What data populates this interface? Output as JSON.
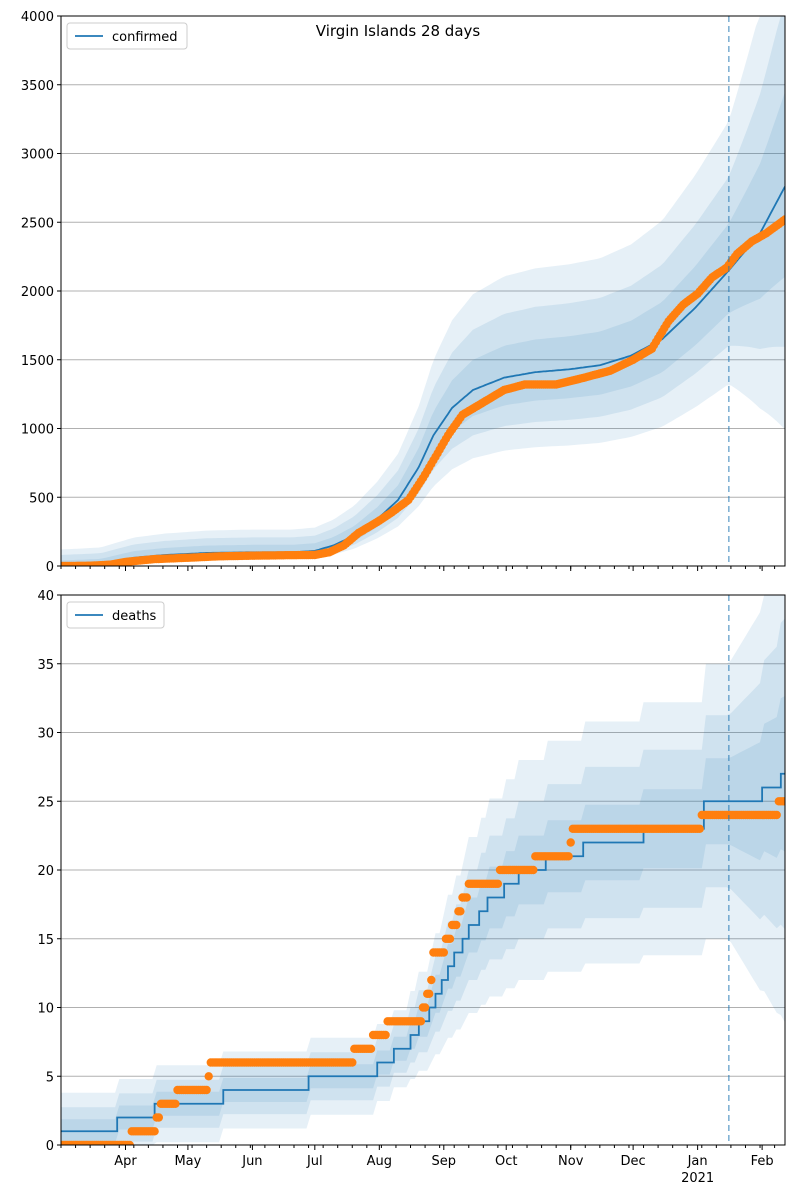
{
  "title": "Virgin Islands 28 days",
  "colors": {
    "line": "#1f77b4",
    "points": "#ff7f0e",
    "band": "#1f77b4",
    "grid": "#b0b0b0",
    "forecast_line": "#1f77b4"
  },
  "x_ticks": [
    {
      "label": "Apr",
      "day": 31
    },
    {
      "label": "May",
      "day": 61
    },
    {
      "label": "Jun",
      "day": 92
    },
    {
      "label": "Jul",
      "day": 122
    },
    {
      "label": "Aug",
      "day": 153
    },
    {
      "label": "Sep",
      "day": 184
    },
    {
      "label": "Oct",
      "day": 214
    },
    {
      "label": "Nov",
      "day": 245
    },
    {
      "label": "Dec",
      "day": 275
    },
    {
      "label": "Jan",
      "day": 306
    },
    {
      "label": "Feb",
      "day": 337
    }
  ],
  "x_year_label": "2021",
  "chart_data": [
    {
      "type": "line",
      "panel": "top",
      "title": "Virgin Islands 28 days",
      "legend": [
        "confirmed"
      ],
      "legend_position": "upper-left",
      "ylim": [
        0,
        4000
      ],
      "yticks": [
        "0",
        "500",
        "1000",
        "1500",
        "2000",
        "2500",
        "3000",
        "3500",
        "4000"
      ],
      "grid": "horizontal",
      "forecast_start": "2021-01-16",
      "series": [
        {
          "name": "confirmed",
          "kind": "model",
          "points": [
            [
              "2020-03-01",
              0
            ],
            [
              "2020-03-20",
              10
            ],
            [
              "2020-04-05",
              60
            ],
            [
              "2020-04-20",
              80
            ],
            [
              "2020-05-10",
              95
            ],
            [
              "2020-06-01",
              100
            ],
            [
              "2020-06-20",
              100
            ],
            [
              "2020-07-01",
              110
            ],
            [
              "2020-07-10",
              150
            ],
            [
              "2020-07-20",
              220
            ],
            [
              "2020-07-31",
              340
            ],
            [
              "2020-08-10",
              480
            ],
            [
              "2020-08-20",
              720
            ],
            [
              "2020-08-27",
              950
            ],
            [
              "2020-09-05",
              1150
            ],
            [
              "2020-09-15",
              1280
            ],
            [
              "2020-09-30",
              1370
            ],
            [
              "2020-10-15",
              1410
            ],
            [
              "2020-10-31",
              1430
            ],
            [
              "2020-11-15",
              1460
            ],
            [
              "2020-11-30",
              1530
            ],
            [
              "2020-12-15",
              1650
            ],
            [
              "2020-12-31",
              1880
            ],
            [
              "2021-01-16",
              2150
            ],
            [
              "2021-01-31",
              2420
            ],
            [
              "2021-02-12",
              2760
            ]
          ]
        },
        {
          "name": "",
          "kind": "observed",
          "points": [
            [
              "2020-03-01",
              0
            ],
            [
              "2020-03-15",
              2
            ],
            [
              "2020-03-25",
              10
            ],
            [
              "2020-04-01",
              30
            ],
            [
              "2020-04-15",
              50
            ],
            [
              "2020-05-01",
              60
            ],
            [
              "2020-05-15",
              70
            ],
            [
              "2020-06-01",
              75
            ],
            [
              "2020-06-15",
              78
            ],
            [
              "2020-07-01",
              80
            ],
            [
              "2020-07-08",
              100
            ],
            [
              "2020-07-15",
              150
            ],
            [
              "2020-07-22",
              240
            ],
            [
              "2020-07-31",
              320
            ],
            [
              "2020-08-07",
              390
            ],
            [
              "2020-08-15",
              480
            ],
            [
              "2020-08-22",
              640
            ],
            [
              "2020-08-29",
              820
            ],
            [
              "2020-09-03",
              950
            ],
            [
              "2020-09-10",
              1100
            ],
            [
              "2020-09-20",
              1190
            ],
            [
              "2020-09-30",
              1280
            ],
            [
              "2020-10-10",
              1320
            ],
            [
              "2020-10-25",
              1320
            ],
            [
              "2020-11-05",
              1360
            ],
            [
              "2020-11-20",
              1420
            ],
            [
              "2020-12-01",
              1500
            ],
            [
              "2020-12-10",
              1580
            ],
            [
              "2020-12-18",
              1780
            ],
            [
              "2020-12-25",
              1900
            ],
            [
              "2021-01-01",
              1980
            ],
            [
              "2021-01-08",
              2100
            ],
            [
              "2021-01-15",
              2170
            ],
            [
              "2021-01-20",
              2270
            ],
            [
              "2021-01-27",
              2360
            ],
            [
              "2021-02-03",
              2420
            ],
            [
              "2021-02-12",
              2520
            ]
          ]
        }
      ]
    },
    {
      "type": "line",
      "panel": "bottom",
      "legend": [
        "deaths"
      ],
      "legend_position": "upper-left",
      "ylim": [
        0,
        40
      ],
      "yticks": [
        "0",
        "5",
        "10",
        "15",
        "20",
        "25",
        "30",
        "35",
        "40"
      ],
      "grid": "horizontal",
      "forecast_start": "2021-01-16",
      "series": [
        {
          "name": "deaths",
          "kind": "model-step",
          "points": [
            [
              "2020-03-01",
              1
            ],
            [
              "2020-03-28",
              2
            ],
            [
              "2020-04-15",
              3
            ],
            [
              "2020-05-18",
              4
            ],
            [
              "2020-06-28",
              5
            ],
            [
              "2020-07-31",
              6
            ],
            [
              "2020-08-08",
              7
            ],
            [
              "2020-08-16",
              8
            ],
            [
              "2020-08-20",
              9
            ],
            [
              "2020-08-25",
              10
            ],
            [
              "2020-08-28",
              11
            ],
            [
              "2020-08-31",
              12
            ],
            [
              "2020-09-03",
              13
            ],
            [
              "2020-09-06",
              14
            ],
            [
              "2020-09-10",
              15
            ],
            [
              "2020-09-13",
              16
            ],
            [
              "2020-09-18",
              17
            ],
            [
              "2020-09-22",
              18
            ],
            [
              "2020-09-30",
              19
            ],
            [
              "2020-10-07",
              20
            ],
            [
              "2020-10-20",
              21
            ],
            [
              "2020-11-07",
              22
            ],
            [
              "2020-12-06",
              23
            ],
            [
              "2021-01-04",
              25
            ],
            [
              "2021-01-20",
              25
            ],
            [
              "2021-02-01",
              26
            ],
            [
              "2021-02-10",
              27
            ]
          ]
        },
        {
          "name": "",
          "kind": "observed-step",
          "points": [
            [
              "2020-03-01",
              0
            ],
            [
              "2020-04-04",
              1
            ],
            [
              "2020-04-16",
              2
            ],
            [
              "2020-04-18",
              3
            ],
            [
              "2020-04-26",
              4
            ],
            [
              "2020-05-11",
              5
            ],
            [
              "2020-05-12",
              6
            ],
            [
              "2020-07-20",
              7
            ],
            [
              "2020-07-29",
              8
            ],
            [
              "2020-08-05",
              9
            ],
            [
              "2020-08-22",
              10
            ],
            [
              "2020-08-24",
              11
            ],
            [
              "2020-08-26",
              12
            ],
            [
              "2020-08-27",
              14
            ],
            [
              "2020-09-02",
              15
            ],
            [
              "2020-09-05",
              16
            ],
            [
              "2020-09-08",
              17
            ],
            [
              "2020-09-10",
              18
            ],
            [
              "2020-09-13",
              19
            ],
            [
              "2020-09-28",
              20
            ],
            [
              "2020-10-15",
              21
            ],
            [
              "2020-11-01",
              22
            ],
            [
              "2020-11-02",
              23
            ],
            [
              "2021-01-03",
              24
            ],
            [
              "2021-02-09",
              25
            ]
          ]
        }
      ]
    }
  ]
}
